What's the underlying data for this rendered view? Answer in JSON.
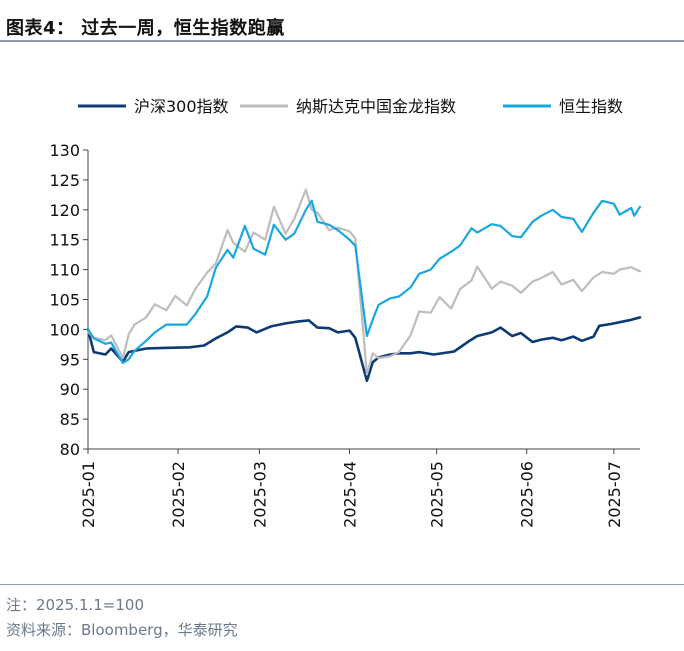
{
  "header": {
    "title": "图表4：  过去一周，恒生指数跑赢"
  },
  "footer": {
    "note": "注：2025.1.1=100",
    "source": "资料来源：Bloomberg，华泰研究"
  },
  "chart_data": {
    "type": "line",
    "title": "",
    "xlabel": "",
    "ylabel": "",
    "ylim": [
      80,
      130
    ],
    "yticks": [
      80,
      85,
      90,
      95,
      100,
      105,
      110,
      115,
      120,
      125,
      130
    ],
    "xlim": [
      "2025-01-01",
      "2025-07-10"
    ],
    "xticks": [
      "2025-01",
      "2025-02",
      "2025-03",
      "2025-04",
      "2025-05",
      "2025-06",
      "2025-07"
    ],
    "xtick_dates": [
      "2025-01-01",
      "2025-02-01",
      "2025-03-01",
      "2025-04-01",
      "2025-05-01",
      "2025-06-01",
      "2025-07-01"
    ],
    "grid": false,
    "legend": "top",
    "series": [
      {
        "name": "沪深300指数",
        "color": "#0d3a73",
        "points": [
          [
            "2025-01-01",
            100
          ],
          [
            "2025-01-03",
            96.2
          ],
          [
            "2025-01-07",
            95.8
          ],
          [
            "2025-01-09",
            96.8
          ],
          [
            "2025-01-13",
            94.6
          ],
          [
            "2025-01-15",
            96.2
          ],
          [
            "2025-01-17",
            96.4
          ],
          [
            "2025-01-21",
            96.8
          ],
          [
            "2025-01-27",
            96.9
          ],
          [
            "2025-02-05",
            97
          ],
          [
            "2025-02-10",
            97.3
          ],
          [
            "2025-02-14",
            98.5
          ],
          [
            "2025-02-18",
            99.5
          ],
          [
            "2025-02-21",
            100.5
          ],
          [
            "2025-02-25",
            100.3
          ],
          [
            "2025-02-28",
            99.5
          ],
          [
            "2025-03-05",
            100.5
          ],
          [
            "2025-03-10",
            101
          ],
          [
            "2025-03-14",
            101.3
          ],
          [
            "2025-03-18",
            101.5
          ],
          [
            "2025-03-21",
            100.3
          ],
          [
            "2025-03-25",
            100.2
          ],
          [
            "2025-03-28",
            99.5
          ],
          [
            "2025-04-01",
            99.8
          ],
          [
            "2025-04-03",
            98.6
          ],
          [
            "2025-04-07",
            91.4
          ],
          [
            "2025-04-09",
            94.5
          ],
          [
            "2025-04-11",
            95.3
          ],
          [
            "2025-04-15",
            95.8
          ],
          [
            "2025-04-18",
            96
          ],
          [
            "2025-04-22",
            96
          ],
          [
            "2025-04-25",
            96.2
          ],
          [
            "2025-04-30",
            95.8
          ],
          [
            "2025-05-07",
            96.3
          ],
          [
            "2025-05-12",
            98
          ],
          [
            "2025-05-15",
            98.9
          ],
          [
            "2025-05-20",
            99.5
          ],
          [
            "2025-05-23",
            100.3
          ],
          [
            "2025-05-27",
            98.9
          ],
          [
            "2025-05-30",
            99.4
          ],
          [
            "2025-06-03",
            97.9
          ],
          [
            "2025-06-06",
            98.3
          ],
          [
            "2025-06-10",
            98.6
          ],
          [
            "2025-06-13",
            98.2
          ],
          [
            "2025-06-17",
            98.8
          ],
          [
            "2025-06-20",
            98.1
          ],
          [
            "2025-06-24",
            98.8
          ],
          [
            "2025-06-26",
            100.6
          ],
          [
            "2025-06-30",
            100.9
          ],
          [
            "2025-07-03",
            101.2
          ],
          [
            "2025-07-07",
            101.6
          ],
          [
            "2025-07-10",
            102
          ]
        ]
      },
      {
        "name": "纳斯达克中国金龙指数",
        "color": "#bdbdbd",
        "points": [
          [
            "2025-01-01",
            99.6
          ],
          [
            "2025-01-03",
            98.6
          ],
          [
            "2025-01-07",
            98.2
          ],
          [
            "2025-01-09",
            99
          ],
          [
            "2025-01-13",
            95.2
          ],
          [
            "2025-01-15",
            99.2
          ],
          [
            "2025-01-17",
            100.8
          ],
          [
            "2025-01-21",
            102
          ],
          [
            "2025-01-24",
            104.2
          ],
          [
            "2025-01-28",
            103.2
          ],
          [
            "2025-01-31",
            105.6
          ],
          [
            "2025-02-04",
            104
          ],
          [
            "2025-02-07",
            106.8
          ],
          [
            "2025-02-11",
            109.5
          ],
          [
            "2025-02-14",
            111
          ],
          [
            "2025-02-18",
            116.6
          ],
          [
            "2025-02-20",
            114.5
          ],
          [
            "2025-02-24",
            113
          ],
          [
            "2025-02-27",
            116.2
          ],
          [
            "2025-03-03",
            115
          ],
          [
            "2025-03-06",
            120.5
          ],
          [
            "2025-03-10",
            116
          ],
          [
            "2025-03-13",
            118.5
          ],
          [
            "2025-03-17",
            123.4
          ],
          [
            "2025-03-19",
            120
          ],
          [
            "2025-03-21",
            119.5
          ],
          [
            "2025-03-25",
            116.6
          ],
          [
            "2025-03-28",
            117
          ],
          [
            "2025-04-01",
            116.4
          ],
          [
            "2025-04-03",
            115.2
          ],
          [
            "2025-04-07",
            92.5
          ],
          [
            "2025-04-09",
            96
          ],
          [
            "2025-04-11",
            95.2
          ],
          [
            "2025-04-15",
            95.5
          ],
          [
            "2025-04-18",
            96.2
          ],
          [
            "2025-04-22",
            99
          ],
          [
            "2025-04-25",
            103
          ],
          [
            "2025-04-29",
            102.8
          ],
          [
            "2025-05-02",
            105.4
          ],
          [
            "2025-05-06",
            103.5
          ],
          [
            "2025-05-09",
            106.7
          ],
          [
            "2025-05-13",
            108.2
          ],
          [
            "2025-05-15",
            110.5
          ],
          [
            "2025-05-20",
            106.8
          ],
          [
            "2025-05-23",
            108
          ],
          [
            "2025-05-27",
            107.3
          ],
          [
            "2025-05-30",
            106.1
          ],
          [
            "2025-06-03",
            108
          ],
          [
            "2025-06-06",
            108.6
          ],
          [
            "2025-06-10",
            109.6
          ],
          [
            "2025-06-13",
            107.5
          ],
          [
            "2025-06-17",
            108.3
          ],
          [
            "2025-06-20",
            106.4
          ],
          [
            "2025-06-24",
            108.7
          ],
          [
            "2025-06-27",
            109.6
          ],
          [
            "2025-07-01",
            109.3
          ],
          [
            "2025-07-03",
            110
          ],
          [
            "2025-07-07",
            110.4
          ],
          [
            "2025-07-10",
            109.7
          ]
        ]
      },
      {
        "name": "恒生指数",
        "color": "#1aa7e0",
        "points": [
          [
            "2025-01-01",
            100
          ],
          [
            "2025-01-03",
            98.5
          ],
          [
            "2025-01-07",
            97.6
          ],
          [
            "2025-01-09",
            97.8
          ],
          [
            "2025-01-13",
            94.4
          ],
          [
            "2025-01-15",
            95
          ],
          [
            "2025-01-17",
            96.4
          ],
          [
            "2025-01-21",
            98.1
          ],
          [
            "2025-01-24",
            99.5
          ],
          [
            "2025-01-28",
            100.8
          ],
          [
            "2025-02-04",
            100.8
          ],
          [
            "2025-02-07",
            102.6
          ],
          [
            "2025-02-11",
            105.5
          ],
          [
            "2025-02-14",
            110.3
          ],
          [
            "2025-02-18",
            113.3
          ],
          [
            "2025-02-20",
            112
          ],
          [
            "2025-02-24",
            117.3
          ],
          [
            "2025-02-27",
            113.5
          ],
          [
            "2025-03-03",
            112.5
          ],
          [
            "2025-03-06",
            117.5
          ],
          [
            "2025-03-10",
            115
          ],
          [
            "2025-03-13",
            116
          ],
          [
            "2025-03-17",
            120
          ],
          [
            "2025-03-19",
            121.5
          ],
          [
            "2025-03-21",
            118
          ],
          [
            "2025-03-25",
            117.5
          ],
          [
            "2025-03-28",
            116.6
          ],
          [
            "2025-04-01",
            115
          ],
          [
            "2025-04-03",
            114
          ],
          [
            "2025-04-07",
            98.9
          ],
          [
            "2025-04-09",
            101.6
          ],
          [
            "2025-04-11",
            104.1
          ],
          [
            "2025-04-15",
            105.2
          ],
          [
            "2025-04-18",
            105.5
          ],
          [
            "2025-04-22",
            107
          ],
          [
            "2025-04-25",
            109.3
          ],
          [
            "2025-04-29",
            110
          ],
          [
            "2025-05-02",
            111.8
          ],
          [
            "2025-05-06",
            113
          ],
          [
            "2025-05-09",
            114
          ],
          [
            "2025-05-13",
            116.9
          ],
          [
            "2025-05-15",
            116.2
          ],
          [
            "2025-05-20",
            117.6
          ],
          [
            "2025-05-23",
            117.3
          ],
          [
            "2025-05-27",
            115.6
          ],
          [
            "2025-05-30",
            115.4
          ],
          [
            "2025-06-03",
            118
          ],
          [
            "2025-06-06",
            119
          ],
          [
            "2025-06-10",
            120
          ],
          [
            "2025-06-13",
            118.8
          ],
          [
            "2025-06-17",
            118.5
          ],
          [
            "2025-06-20",
            116.3
          ],
          [
            "2025-06-24",
            119.5
          ],
          [
            "2025-06-27",
            121.5
          ],
          [
            "2025-07-01",
            121
          ],
          [
            "2025-07-03",
            119.2
          ],
          [
            "2025-07-07",
            120.3
          ],
          [
            "2025-07-08",
            119
          ],
          [
            "2025-07-10",
            120.5
          ]
        ]
      }
    ]
  }
}
